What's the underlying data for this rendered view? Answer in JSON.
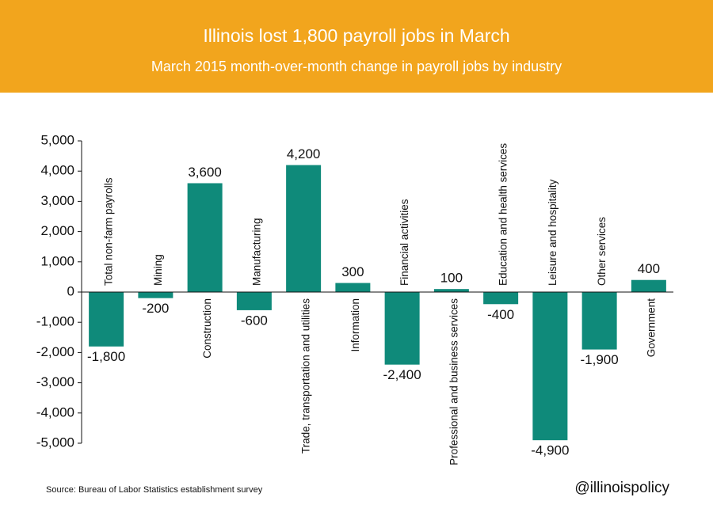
{
  "chart_data": {
    "type": "bar",
    "title": "Illinois lost 1,800 payroll jobs in March",
    "subtitle": "March 2015 month-over-month change in payroll jobs by industry",
    "categories": [
      "Total non-farm payrolls",
      "Mining",
      "Construction",
      "Manufacturing",
      "Trade, transportation and utilities",
      "Information",
      "Financial activities",
      "Professional and business services",
      "Education and health services",
      "Leisure and hospitality",
      "Other services",
      "Government"
    ],
    "values": [
      -1800,
      -200,
      3600,
      -600,
      4200,
      300,
      -2400,
      100,
      -400,
      -4900,
      -1900,
      400
    ],
    "value_labels": [
      "-1,800",
      "-200",
      "3,600",
      "-600",
      "4,200",
      "300",
      "-2,400",
      "100",
      "-400",
      "-4,900",
      "-1,900",
      "400"
    ],
    "color": "#0f8a7a",
    "ylim": [
      -5000,
      5000
    ],
    "yticks": [
      {
        "value": -5000,
        "label": "-5,000"
      },
      {
        "value": -4000,
        "label": "-4,000"
      },
      {
        "value": -3000,
        "label": "-3,000"
      },
      {
        "value": -2000,
        "label": "-2,000"
      },
      {
        "value": -1000,
        "label": "-1,000"
      },
      0,
      {
        "value": 1000,
        "label": "1,000"
      },
      {
        "value": 2000,
        "label": "2,000"
      },
      {
        "value": 3000,
        "label": "3,000"
      },
      {
        "value": 4000,
        "label": "4,000"
      },
      {
        "value": 5000,
        "label": "5,000"
      }
    ],
    "source": "Source: Bureau of Labor Statistics establishment survey",
    "credit": "@illinoispolicy"
  }
}
